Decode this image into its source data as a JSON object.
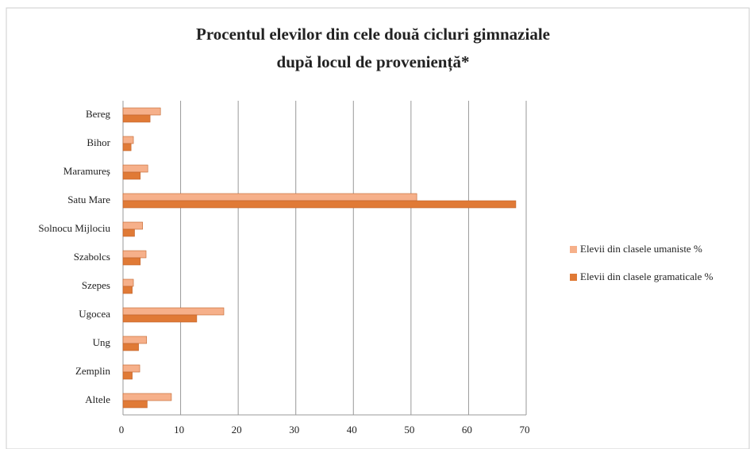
{
  "chart_data": {
    "type": "bar",
    "orientation": "horizontal",
    "title": [
      "Procentul elevilor din cele două cicluri gimnaziale",
      "după locul de proveniență*"
    ],
    "categories": [
      "Bereg",
      "Bihor",
      "Maramureș",
      "Satu Mare",
      "Solnocu Mijlociu",
      "Szabolcs",
      "Szepes",
      "Ugocea",
      "Ung",
      "Zemplin",
      "Altele"
    ],
    "series": [
      {
        "name": "Elevii din clasele umaniste %",
        "color": "#f6b08a",
        "values": [
          6.5,
          1.8,
          4.3,
          51,
          3.4,
          4,
          1.8,
          17.5,
          4.1,
          2.9,
          8.4
        ]
      },
      {
        "name": "Elevii din clasele gramaticale %",
        "color": "#e07a36",
        "values": [
          4.7,
          1.4,
          3,
          68.2,
          2,
          3,
          1.6,
          12.8,
          2.7,
          1.6,
          4.2
        ]
      }
    ],
    "xlim": [
      0,
      70
    ],
    "xticks": [
      0,
      10,
      20,
      30,
      40,
      50,
      60,
      70
    ],
    "grid": true,
    "legend": "right"
  }
}
